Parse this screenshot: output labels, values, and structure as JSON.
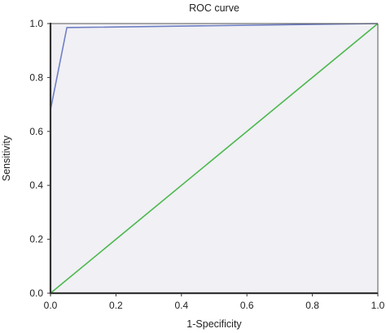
{
  "chart_data": {
    "type": "line",
    "title": "ROC curve",
    "xlabel": "1-Specificity",
    "ylabel": "Sensitivity",
    "xlim": [
      0.0,
      1.0
    ],
    "ylim": [
      0.0,
      1.0
    ],
    "x_ticks": [
      "0.0",
      "0.2",
      "0.4",
      "0.6",
      "0.8",
      "1.0"
    ],
    "y_ticks": [
      "0.0",
      "0.2",
      "0.4",
      "0.6",
      "0.8",
      "1.0"
    ],
    "grid": false,
    "series": [
      {
        "color": "#6f7fc4",
        "x": [
          0.0,
          0.0,
          0.05,
          1.0
        ],
        "y": [
          0.0,
          0.68,
          0.985,
          1.0
        ]
      },
      {
        "color": "#4cb84c",
        "x": [
          0.0,
          1.0
        ],
        "y": [
          0.0,
          1.0
        ]
      }
    ]
  }
}
